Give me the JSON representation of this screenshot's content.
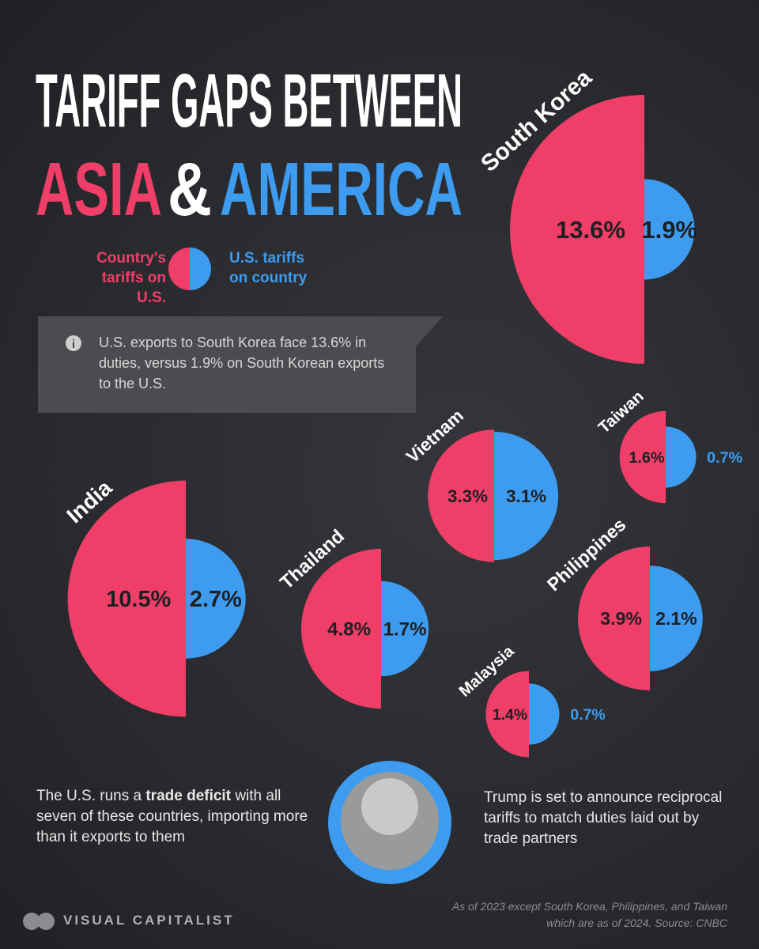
{
  "chart_data": {
    "type": "split-circle",
    "title": {
      "line1": "TARIFF GAPS BETWEEN",
      "asia": "ASIA",
      "amp": "&",
      "america": "AMERICA"
    },
    "categories": [
      "South Korea",
      "India",
      "Vietnam",
      "Thailand",
      "Taiwan",
      "Philippines",
      "Malaysia"
    ],
    "series": [
      {
        "name": "Country's tariffs on U.S.",
        "color": "#ef3e68",
        "values": [
          13.6,
          10.5,
          3.3,
          4.8,
          1.6,
          3.9,
          1.4
        ],
        "value_labels": [
          "13.6%",
          "10.5%",
          "3.3%",
          "4.8%",
          "1.6%",
          "3.9%",
          "1.4%"
        ]
      },
      {
        "name": "U.S. tariffs on country",
        "color": "#3d9cf0",
        "values": [
          1.9,
          2.7,
          3.1,
          1.7,
          0.7,
          2.1,
          0.7
        ],
        "value_labels": [
          "1.9%",
          "2.7%",
          "3.1%",
          "1.7%",
          "0.7%",
          "2.1%",
          "0.7%"
        ]
      }
    ],
    "callout": "U.S. exports to South Korea face 13.6% in duties, versus 1.9% on South Korean exports to the U.S.",
    "note_left": {
      "before": "The U.S. runs a ",
      "bold": "trade deficit",
      "after": " with all seven of these countries, importing more than it exports to them"
    },
    "note_right": "Trump is set to announce reciprocal tariffs to match duties laid out by trade partners",
    "source": "As of 2023 except South Korea, Philippines, and Taiwan which are as of 2024. Source: CNBC",
    "brand": "VISUAL CAPITALIST"
  }
}
